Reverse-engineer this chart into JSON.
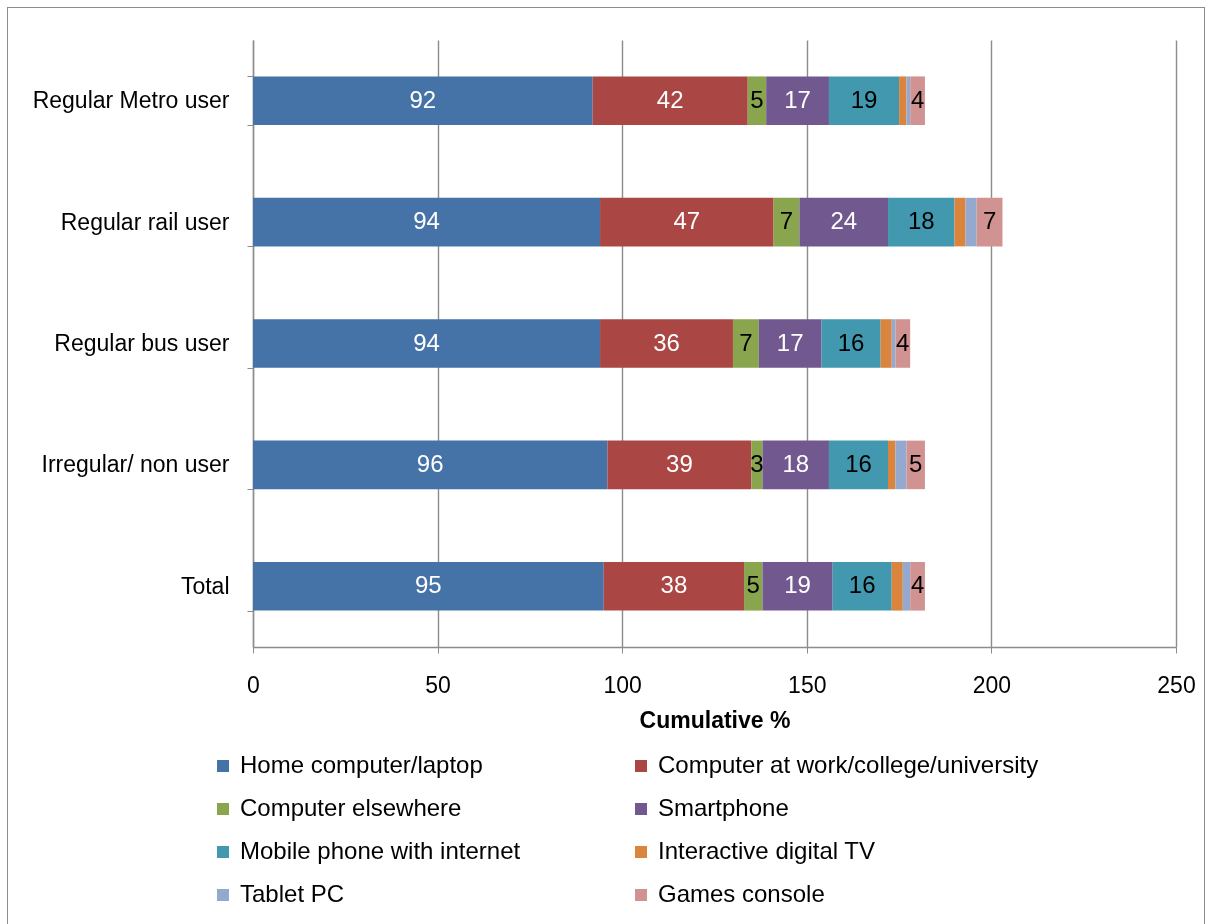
{
  "chart_data": {
    "type": "bar",
    "orientation": "horizontal",
    "stacked": true,
    "categories": [
      "Regular Metro user",
      "Regular rail user",
      "Regular bus user",
      "Irregular/ non user",
      "Total"
    ],
    "xlabel": "Cumulative %",
    "xlim": [
      0,
      250
    ],
    "xticks": [
      0,
      50,
      100,
      150,
      200,
      250
    ],
    "grid": "x",
    "legend": "bottom",
    "series": [
      {
        "name": "Home computer/laptop",
        "color": "#4572a7",
        "values": [
          92,
          94,
          94,
          96,
          95
        ],
        "value_labels": [
          "92",
          "94",
          "94",
          "96",
          "95"
        ]
      },
      {
        "name": "Computer at work/college/university",
        "color": "#aa4643",
        "values": [
          42,
          47,
          36,
          39,
          38
        ],
        "value_labels": [
          "42",
          "47",
          "36",
          "39",
          "38"
        ]
      },
      {
        "name": "Computer elsewhere",
        "color": "#89a54e",
        "values": [
          5,
          7,
          7,
          3,
          5
        ],
        "value_labels": [
          "5",
          "7",
          "7",
          "3",
          "5"
        ]
      },
      {
        "name": "Smartphone",
        "color": "#71588f",
        "values": [
          17,
          24,
          17,
          18,
          19
        ],
        "value_labels": [
          "17",
          "24",
          "17",
          "18",
          "19"
        ]
      },
      {
        "name": "Mobile phone with internet",
        "color": "#4198af",
        "values": [
          19,
          18,
          16,
          16,
          16
        ],
        "value_labels": [
          "19",
          "18",
          "16",
          "16",
          "16"
        ]
      },
      {
        "name": "Interactive digital TV",
        "color": "#db843d",
        "values": [
          2,
          3,
          3,
          2,
          3
        ]
      },
      {
        "name": "Tablet PC",
        "color": "#93a9cf",
        "values": [
          1,
          3,
          1,
          3,
          2
        ]
      },
      {
        "name": "Games console",
        "color": "#d19392",
        "values": [
          4,
          7,
          4,
          5,
          4
        ],
        "value_labels": [
          "4",
          "7",
          "4",
          "5",
          "4"
        ]
      }
    ]
  }
}
